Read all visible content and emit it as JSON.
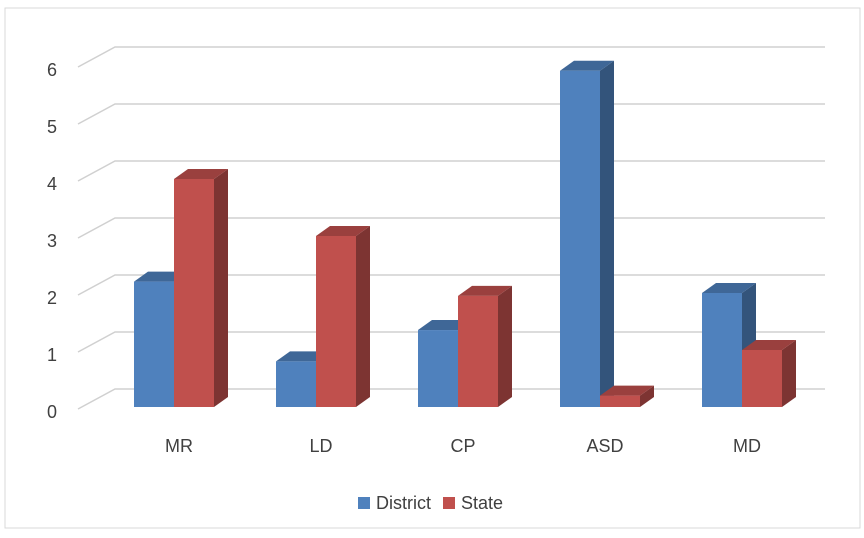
{
  "chart_data": {
    "type": "bar3d",
    "categories": [
      "MR",
      "LD",
      "CP",
      "ASD",
      "MD"
    ],
    "series": [
      {
        "name": "District",
        "color": "#4f81bd",
        "values": [
          2.2,
          0.8,
          1.35,
          5.9,
          2.0
        ]
      },
      {
        "name": "State",
        "color": "#c0504d",
        "values": [
          4.0,
          3.0,
          1.95,
          0.2,
          1.0
        ]
      }
    ],
    "ylim": [
      0,
      6
    ],
    "yticks": [
      0,
      1,
      2,
      3,
      4,
      5,
      6
    ],
    "grid": true,
    "legend": "bottom"
  }
}
